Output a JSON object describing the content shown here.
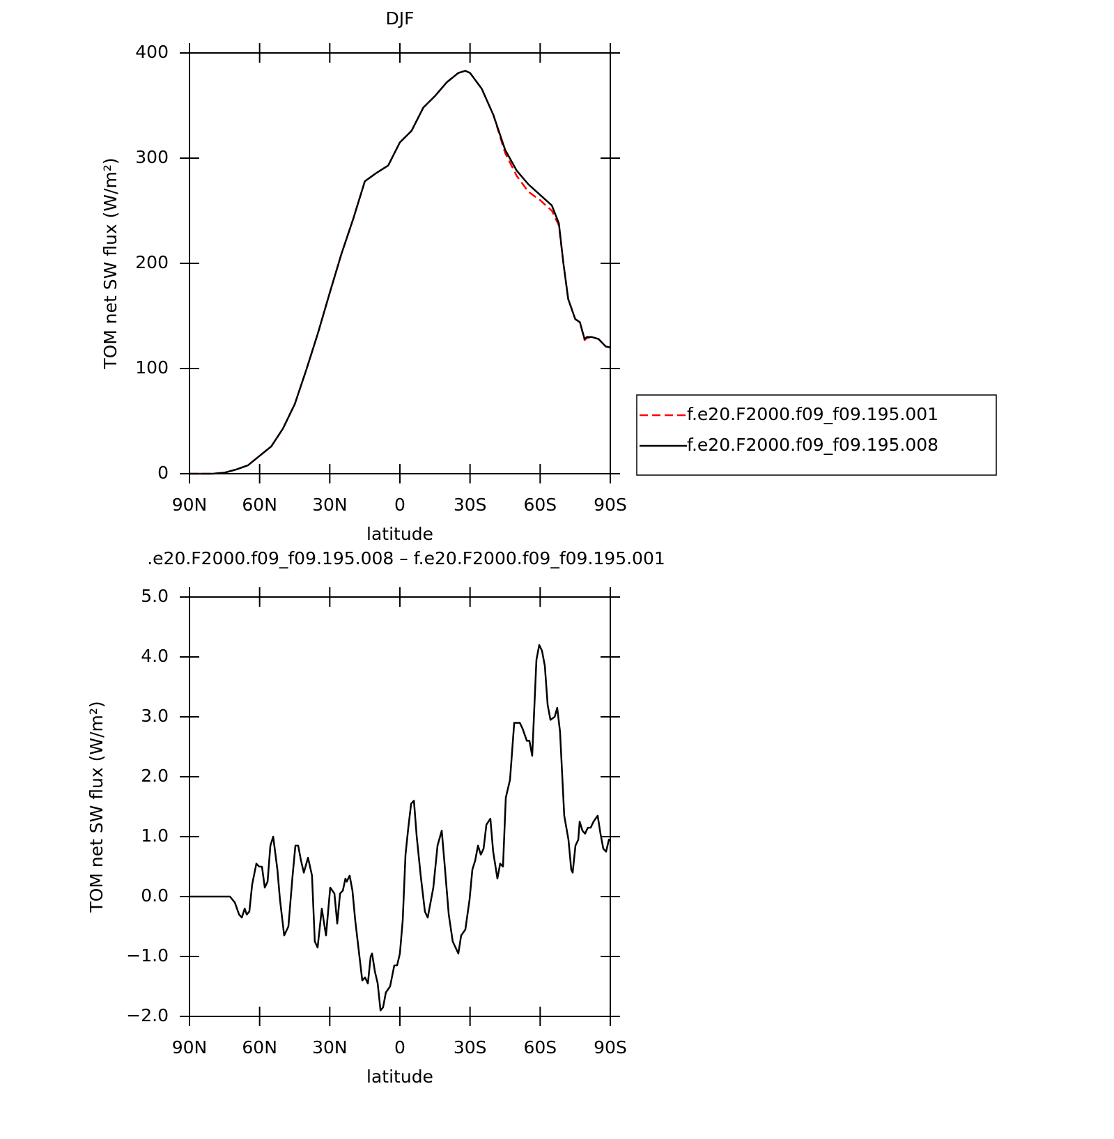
{
  "chart_data": [
    {
      "type": "line",
      "title": "DJF",
      "xlabel": "latitude",
      "ylabel": "TOM net SW flux (W/m²)",
      "x": [
        90,
        80,
        75,
        70,
        65,
        60,
        55,
        50,
        45,
        40,
        35,
        30,
        25,
        20,
        15,
        10,
        5,
        0,
        -5,
        -10,
        -15,
        -20,
        -25,
        -28,
        -30,
        -35,
        -40,
        -45,
        -50,
        -55,
        -60,
        -65,
        -68,
        -70,
        -72,
        -75,
        -77,
        -79,
        -80,
        -82,
        -85,
        -88,
        -90
      ],
      "series": [
        {
          "name": "f.e20.F2000.f09_f09.195.001",
          "color": "#ff0000",
          "line_style": "dashed",
          "values": [
            0,
            0,
            1,
            4,
            8,
            17,
            26,
            43,
            66,
            99,
            134,
            172,
            209,
            242,
            278,
            286,
            293,
            315,
            326,
            348,
            359,
            372,
            381,
            383,
            381,
            366,
            341,
            305,
            283,
            268,
            260,
            250,
            236,
            199,
            166,
            147,
            144,
            127,
            129,
            130,
            128,
            121,
            120
          ]
        },
        {
          "name": "f.e20.F2000.f09_f09.195.008",
          "color": "#000000",
          "line_style": "solid",
          "values": [
            0,
            0,
            1,
            4,
            8,
            17,
            26,
            43,
            66,
            99,
            134,
            172,
            209,
            242,
            278,
            286,
            293,
            315,
            326,
            348,
            359,
            372,
            381,
            383,
            381,
            366,
            341,
            308,
            288,
            275,
            265,
            255,
            238,
            199,
            166,
            147,
            144,
            128,
            130,
            130,
            128,
            121,
            120
          ]
        }
      ],
      "xlim": [
        90,
        -90
      ],
      "xticks": [
        {
          "value": 90,
          "label": "90N"
        },
        {
          "value": 60,
          "label": "60N"
        },
        {
          "value": 30,
          "label": "30N"
        },
        0,
        {
          "value": -30,
          "label": "30S"
        },
        {
          "value": -60,
          "label": "60S"
        },
        {
          "value": -90,
          "label": "90S"
        }
      ],
      "ylim": [
        0,
        400
      ],
      "yticks": [
        0,
        100,
        200,
        300,
        400
      ],
      "legend": "right"
    },
    {
      "type": "line",
      "title": ".e20.F2000.f09_f09.195.008 – f.e20.F2000.f09_f09.195.001",
      "xlabel": "latitude",
      "ylabel": "TOM net SW flux (W/m²)",
      "x": [
        90,
        80,
        72.7,
        70.6,
        68.8,
        67.6,
        66.4,
        65.5,
        64.4,
        63.2,
        61.4,
        60.2,
        59,
        57.8,
        56.6,
        55.4,
        54.2,
        52.4,
        51.3,
        49.5,
        47.7,
        45.9,
        44.7,
        43.5,
        42.3,
        41.1,
        39.3,
        37.6,
        36.4,
        35.2,
        33.4,
        31.6,
        29.8,
        28,
        26.8,
        25.6,
        24.4,
        23.3,
        22.7,
        21.5,
        20.3,
        19.1,
        17.9,
        16.1,
        14.9,
        13.7,
        12.5,
        11.9,
        10.7,
        9.5,
        8.3,
        7.2,
        6,
        4.2,
        2.4,
        1.2,
        0,
        -1.2,
        -2.4,
        -3.6,
        -4.8,
        -6,
        -7.2,
        -8.9,
        -10.7,
        -11.9,
        -13.1,
        -14.3,
        -16.1,
        -17.9,
        -19.1,
        -20.9,
        -22.6,
        -23.8,
        -25,
        -26.2,
        -28,
        -29.8,
        -31,
        -32.2,
        -33.4,
        -34.6,
        -35.8,
        -37,
        -38.7,
        -39.9,
        -41.7,
        -42.9,
        -44.1,
        -45.3,
        -47.1,
        -48.9,
        -51.3,
        -52.5,
        -54.3,
        -55.4,
        -56.6,
        -58.4,
        -59.6,
        -60.8,
        -62,
        -63.2,
        -64.4,
        -66.2,
        -67.3,
        -68.5,
        -70.3,
        -72.1,
        -73.3,
        -73.9,
        -75.1,
        -76.3,
        -76.9,
        -78.1,
        -79.2,
        -80.4,
        -81.6,
        -82.8,
        -84.6,
        -85.8,
        -87,
        -88.2,
        -89.4,
        -90
      ],
      "values": [
        0,
        0,
        0,
        -0.1,
        -0.3,
        -0.35,
        -0.2,
        -0.3,
        -0.25,
        0.2,
        0.55,
        0.5,
        0.5,
        0.15,
        0.25,
        0.85,
        1.0,
        0.45,
        -0.05,
        -0.65,
        -0.5,
        0.35,
        0.85,
        0.85,
        0.6,
        0.4,
        0.65,
        0.35,
        -0.75,
        -0.85,
        -0.2,
        -0.65,
        0.15,
        0.05,
        -0.45,
        0.05,
        0.1,
        0.3,
        0.25,
        0.35,
        0.1,
        -0.4,
        -0.8,
        -1.4,
        -1.35,
        -1.45,
        -1.0,
        -0.95,
        -1.25,
        -1.45,
        -1.9,
        -1.85,
        -1.6,
        -1.5,
        -1.15,
        -1.15,
        -0.95,
        -0.4,
        0.7,
        1.15,
        1.55,
        1.6,
        1.0,
        0.35,
        -0.25,
        -0.35,
        -0.1,
        0.15,
        0.85,
        1.1,
        0.55,
        -0.3,
        -0.75,
        -0.85,
        -0.95,
        -0.65,
        -0.55,
        -0.05,
        0.45,
        0.6,
        0.85,
        0.7,
        0.8,
        1.2,
        1.3,
        0.75,
        0.3,
        0.55,
        0.5,
        1.65,
        1.95,
        2.9,
        2.9,
        2.8,
        2.6,
        2.6,
        2.35,
        3.95,
        4.2,
        4.1,
        3.85,
        3.2,
        2.95,
        3.0,
        3.15,
        2.75,
        1.35,
        0.95,
        0.45,
        0.4,
        0.85,
        0.95,
        1.25,
        1.1,
        1.05,
        1.15,
        1.15,
        1.25,
        1.35,
        1.05,
        0.8,
        0.75,
        0.95,
        0.95
      ],
      "color": "#000000",
      "xlim": [
        90,
        -90
      ],
      "xticks": [
        {
          "value": 90,
          "label": "90N"
        },
        {
          "value": 60,
          "label": "60N"
        },
        {
          "value": 30,
          "label": "30N"
        },
        0,
        {
          "value": -30,
          "label": "30S"
        },
        {
          "value": -60,
          "label": "60S"
        },
        {
          "value": -90,
          "label": "90S"
        }
      ],
      "ylim": [
        -2,
        5
      ],
      "yticks": [
        {
          "value": -2,
          "label": "−2.0"
        },
        {
          "value": -1,
          "label": "−1.0"
        },
        {
          "value": 0,
          "label": "0.0"
        },
        {
          "value": 1,
          "label": "1.0"
        },
        {
          "value": 2,
          "label": "2.0"
        },
        {
          "value": 3,
          "label": "3.0"
        },
        {
          "value": 4,
          "label": "4.0"
        },
        {
          "value": 5,
          "label": "5.0"
        }
      ]
    }
  ]
}
